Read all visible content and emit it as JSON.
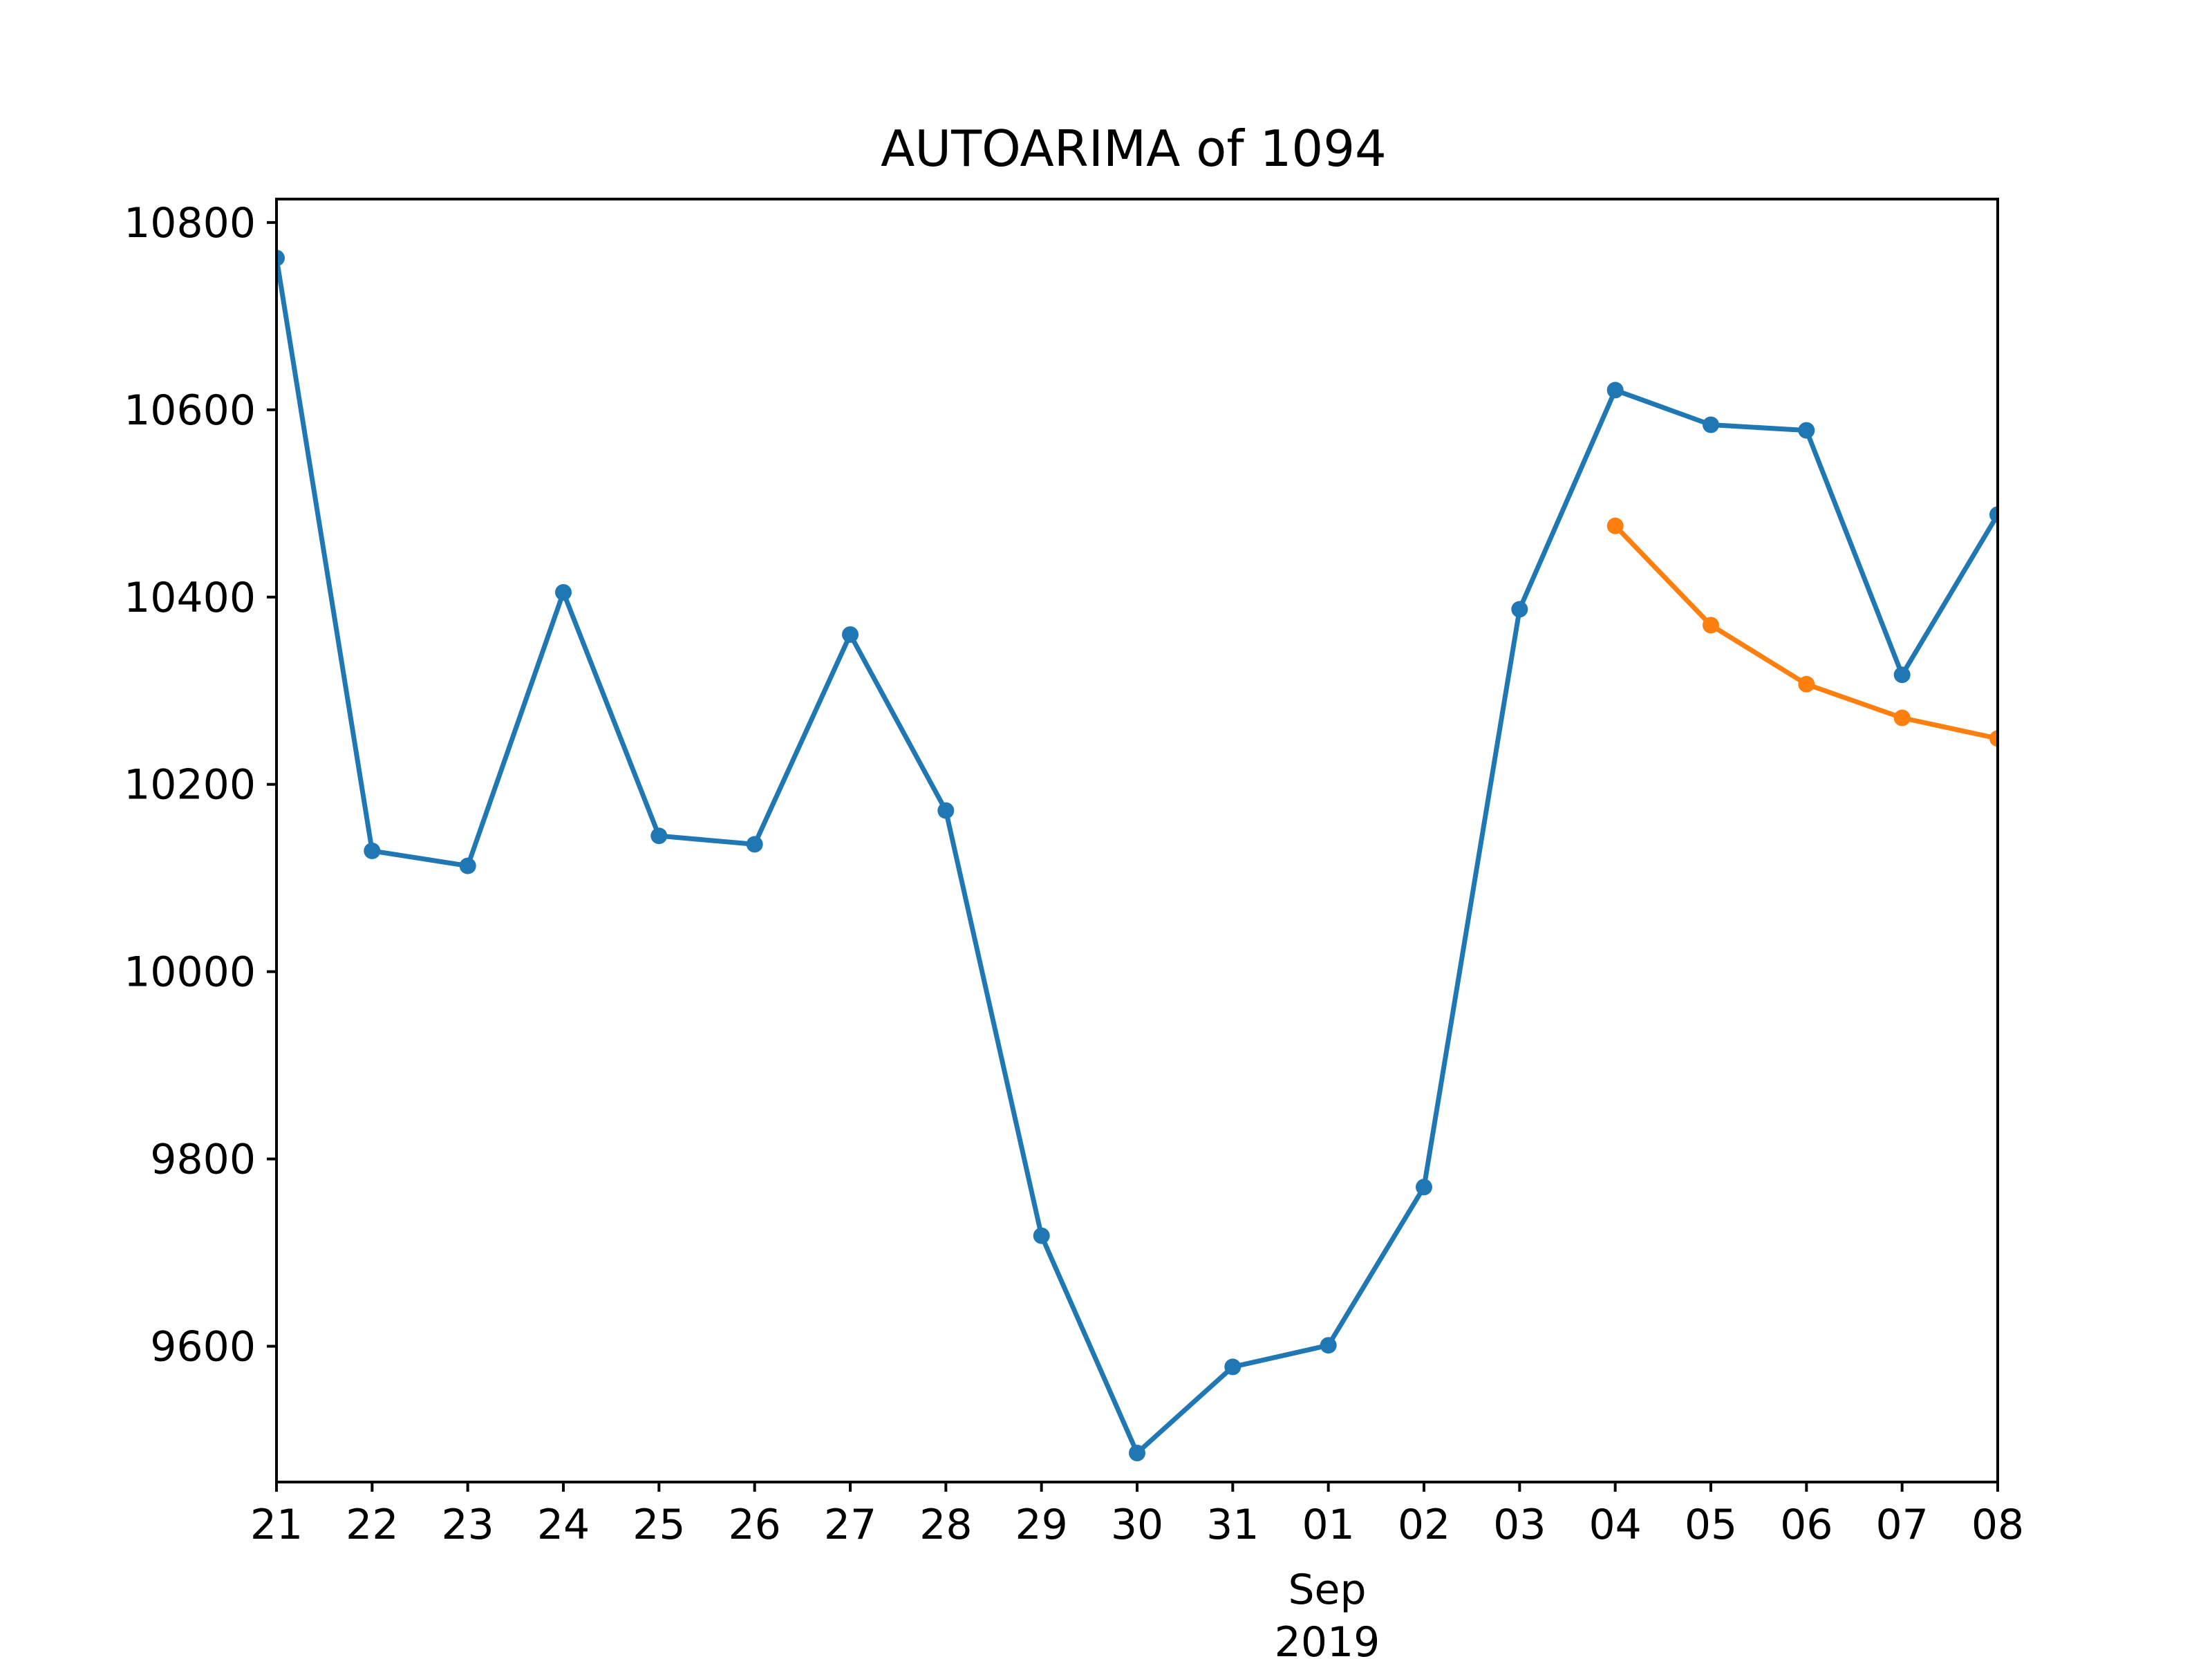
{
  "chart_data": {
    "type": "line",
    "title": "AUTOARIMA of 1094",
    "xlabel": "",
    "ylabel": "",
    "x": [
      "2019-08-21",
      "2019-08-22",
      "2019-08-23",
      "2019-08-24",
      "2019-08-25",
      "2019-08-26",
      "2019-08-27",
      "2019-08-28",
      "2019-08-29",
      "2019-08-30",
      "2019-08-31",
      "2019-09-01",
      "2019-09-02",
      "2019-09-03",
      "2019-09-04",
      "2019-09-05",
      "2019-09-06",
      "2019-09-07",
      "2019-09-08"
    ],
    "x_tick_labels": [
      "21",
      "22",
      "23",
      "24",
      "25",
      "26",
      "27",
      "28",
      "29",
      "30",
      "31",
      "01",
      "02",
      "03",
      "04",
      "05",
      "06",
      "07",
      "08"
    ],
    "x_secondary_label": [
      "Sep",
      "2019"
    ],
    "y_ticks": [
      9600,
      9800,
      10000,
      10200,
      10400,
      10600,
      10800
    ],
    "y_tick_labels": [
      "9600",
      "9800",
      "10000",
      "10200",
      "10400",
      "10600",
      "10800"
    ],
    "ylim": [
      9455,
      10825
    ],
    "grid": false,
    "series": [
      {
        "color": "#1f77b4",
        "x": [
          "2019-08-21",
          "2019-08-22",
          "2019-08-23",
          "2019-08-24",
          "2019-08-25",
          "2019-08-26",
          "2019-08-27",
          "2019-08-28",
          "2019-08-29",
          "2019-08-30",
          "2019-08-31",
          "2019-09-01",
          "2019-09-02",
          "2019-09-03",
          "2019-09-04",
          "2019-09-05",
          "2019-09-06",
          "2019-09-07",
          "2019-09-08"
        ],
        "values": [
          10762,
          10129,
          10113,
          10405,
          10145,
          10136,
          10360,
          10172,
          9718,
          9486,
          9578,
          9601,
          9770,
          10387,
          10621,
          10584,
          10578,
          10317,
          10488
        ]
      },
      {
        "color": "#ff7f0e",
        "x": [
          "2019-09-04",
          "2019-09-05",
          "2019-09-06",
          "2019-09-07",
          "2019-09-08"
        ],
        "values": [
          10476,
          10370,
          10307,
          10271,
          10249
        ]
      }
    ]
  }
}
